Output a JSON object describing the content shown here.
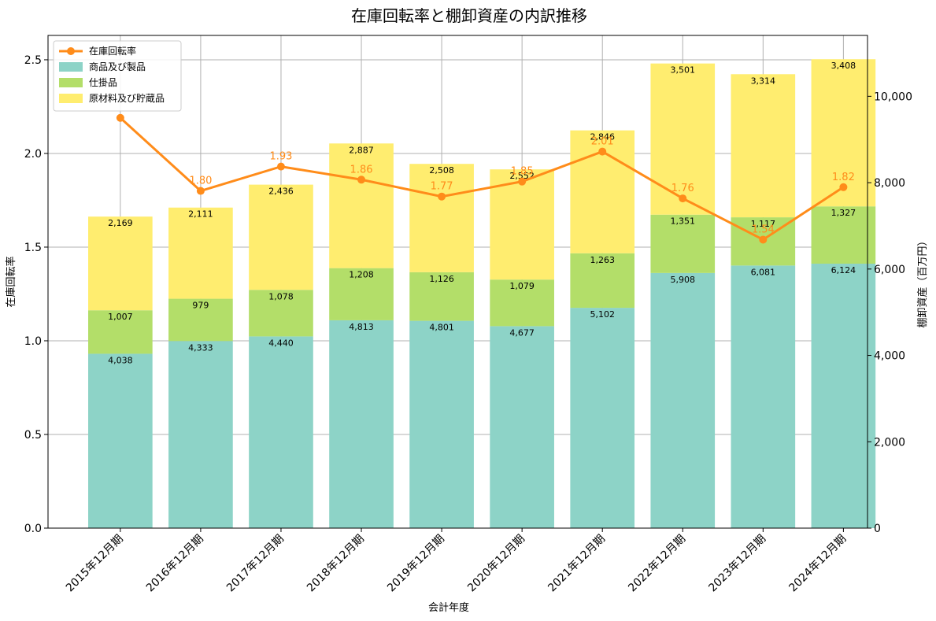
{
  "chart_data": {
    "type": "bar",
    "stacked": true,
    "title": "在庫回転率と棚卸資産の内訳推移",
    "xlabel": "会計年度",
    "ylabel_left": "在庫回転率",
    "ylabel_right": "棚卸資産（百万円）",
    "categories": [
      "2015年12月期",
      "2016年12月期",
      "2017年12月期",
      "2018年12月期",
      "2019年12月期",
      "2020年12月期",
      "2021年12月期",
      "2022年12月期",
      "2023年12月期",
      "2024年12月期"
    ],
    "series": [
      {
        "name": "商品及び製品",
        "axis": "right",
        "kind": "bar",
        "color": "#8dd3c7",
        "values": [
          4038,
          4333,
          4440,
          4813,
          4801,
          4677,
          5102,
          5908,
          6081,
          6124
        ],
        "labels": [
          "4,038",
          "4,333",
          "4,440",
          "4,813",
          "4,801",
          "4,677",
          "5,102",
          "5,908",
          "6,081",
          "6,124"
        ]
      },
      {
        "name": "仕掛品",
        "axis": "right",
        "kind": "bar",
        "color": "#b3de69",
        "values": [
          1007,
          979,
          1078,
          1208,
          1126,
          1079,
          1263,
          1351,
          1117,
          1327
        ],
        "labels": [
          "1,007",
          "979",
          "1,078",
          "1,208",
          "1,126",
          "1,079",
          "1,263",
          "1,351",
          "1,117",
          "1,327"
        ]
      },
      {
        "name": "原材料及び貯蔵品",
        "axis": "right",
        "kind": "bar",
        "color": "#ffed6f",
        "values": [
          2169,
          2111,
          2436,
          2887,
          2508,
          2552,
          2846,
          3501,
          3314,
          3408
        ],
        "labels": [
          "2,169",
          "2,111",
          "2,436",
          "2,887",
          "2,508",
          "2,552",
          "2,846",
          "3,501",
          "3,314",
          "3,408"
        ]
      },
      {
        "name": "在庫回転率",
        "axis": "left",
        "kind": "line",
        "color": "#ff8c1a",
        "values": [
          2.19,
          1.8,
          1.93,
          1.86,
          1.77,
          1.85,
          2.01,
          1.76,
          1.54,
          1.82
        ],
        "labels": [
          "",
          "1.80",
          "1.93",
          "1.86",
          "1.77",
          "1.85",
          "2.01",
          "1.76",
          "1.54",
          "1.82"
        ]
      }
    ],
    "ylim_left": [
      0,
      2.63
    ],
    "yticks_left": [
      "0.0",
      "0.5",
      "1.0",
      "1.5",
      "2.0",
      "2.5"
    ],
    "ylim_right": [
      0,
      11410
    ],
    "yticks_right": [
      "0",
      "2,000",
      "4,000",
      "6,000",
      "8,000",
      "10,000"
    ],
    "grid": true,
    "legend_position": "top-left"
  }
}
